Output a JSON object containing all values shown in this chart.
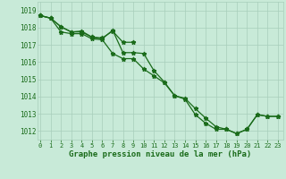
{
  "line_top": {
    "x": [
      0,
      1,
      2,
      3,
      4,
      5,
      6,
      7,
      8,
      9
    ],
    "y": [
      1018.7,
      1018.55,
      1018.05,
      1017.75,
      1017.8,
      1017.45,
      1017.4,
      1017.8,
      1017.15,
      1017.15
    ]
  },
  "line_mid": {
    "x": [
      0,
      1,
      2,
      3,
      4,
      5,
      6,
      7,
      8,
      9,
      10,
      11,
      12,
      13,
      14,
      15,
      16,
      17,
      18,
      19,
      20,
      21,
      22,
      23
    ],
    "y": [
      1018.7,
      1018.55,
      1018.05,
      1017.75,
      1017.75,
      1017.45,
      1017.35,
      1017.85,
      1016.55,
      1016.55,
      1016.5,
      1015.5,
      1014.85,
      1014.05,
      1013.9,
      1013.3,
      1012.75,
      1012.25,
      1012.1,
      1011.85,
      1012.1,
      1012.95,
      1012.85,
      1012.85
    ]
  },
  "line_bot": {
    "x": [
      0,
      1,
      2,
      3,
      4,
      5,
      6,
      7,
      8,
      9,
      10,
      11,
      12,
      13,
      14,
      15,
      16,
      17,
      18,
      19,
      20,
      21,
      22,
      23
    ],
    "y": [
      1018.7,
      1018.55,
      1017.75,
      1017.65,
      1017.65,
      1017.35,
      1017.3,
      1016.5,
      1016.2,
      1016.2,
      1015.6,
      1015.2,
      1014.8,
      1014.05,
      1013.85,
      1012.95,
      1012.45,
      1012.1,
      1012.1,
      1011.85,
      1012.1,
      1012.95,
      1012.85,
      1012.85
    ]
  },
  "ytick_labels": [
    "1019",
    "1018",
    "1017",
    "1016",
    "1015",
    "1014",
    "1013",
    "1012"
  ],
  "ytick_vals": [
    1019,
    1018,
    1017,
    1016,
    1015,
    1014,
    1013,
    1012
  ],
  "xtick_labels": [
    "0",
    "1",
    "2",
    "3",
    "4",
    "5",
    "6",
    "7",
    "8",
    "9",
    "10",
    "11",
    "12",
    "13",
    "14",
    "15",
    "16",
    "17",
    "18",
    "19",
    "20",
    "21",
    "22",
    "23"
  ],
  "xtick_vals": [
    0,
    1,
    2,
    3,
    4,
    5,
    6,
    7,
    8,
    9,
    10,
    11,
    12,
    13,
    14,
    15,
    16,
    17,
    18,
    19,
    20,
    21,
    22,
    23
  ],
  "ylim": [
    1011.5,
    1019.5
  ],
  "xlim": [
    -0.3,
    23.5
  ],
  "line_color": "#1a6b1a",
  "bg_color": "#c8ead8",
  "grid_color": "#a8cebb",
  "xlabel": "Graphe pression niveau de la mer (hPa)",
  "xlabel_color": "#1a6b1a",
  "tick_color": "#1a6b1a",
  "marker": "*",
  "marker_size": 3.5,
  "linewidth": 0.9
}
